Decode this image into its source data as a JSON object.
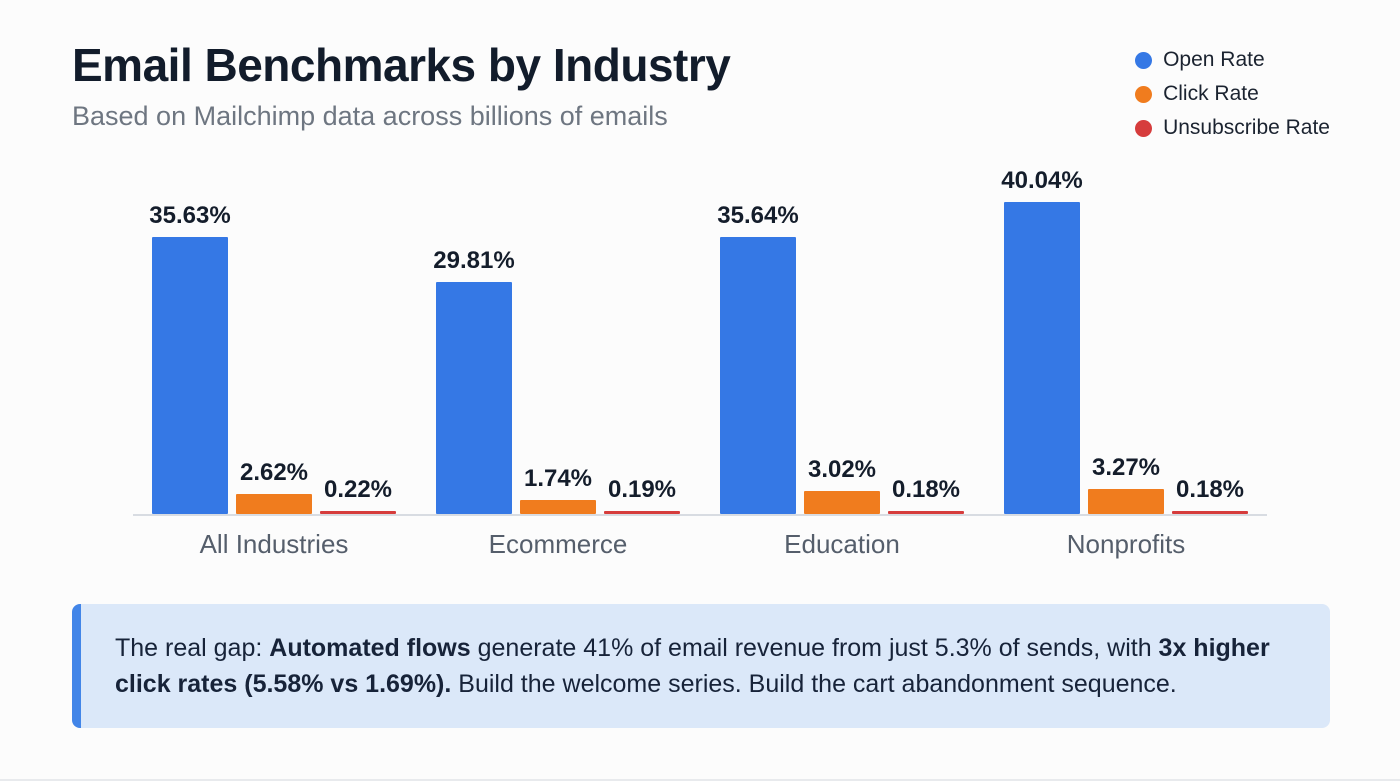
{
  "header": {
    "title": "Email Benchmarks by Industry",
    "subtitle": "Based on Mailchimp data across billions of emails"
  },
  "legend": [
    {
      "label": "Open Rate",
      "color": "#3578e5"
    },
    {
      "label": "Click Rate",
      "color": "#f07c1e"
    },
    {
      "label": "Unsubscribe Rate",
      "color": "#d63c3c"
    }
  ],
  "chart_data": {
    "type": "bar",
    "title": "Email Benchmarks by Industry",
    "subtitle": "Based on Mailchimp data across billions of emails",
    "categories": [
      "All Industries",
      "Ecommerce",
      "Education",
      "Nonprofits"
    ],
    "series": [
      {
        "name": "Open Rate",
        "color": "#3578e5",
        "values": [
          35.63,
          29.81,
          35.64,
          40.04
        ]
      },
      {
        "name": "Click Rate",
        "color": "#f07c1e",
        "values": [
          2.62,
          1.74,
          3.02,
          3.27
        ]
      },
      {
        "name": "Unsubscribe Rate",
        "color": "#d63c3c",
        "values": [
          0.22,
          0.19,
          0.18,
          0.18
        ]
      }
    ],
    "value_label_format": "percent_2dp",
    "xlabel": "",
    "ylabel": "",
    "ylim": [
      0,
      44
    ],
    "grid": false,
    "legend_position": "top-right",
    "data_labels": true
  },
  "callout": {
    "segments": [
      {
        "text": "The real gap: ",
        "bold": false
      },
      {
        "text": "Automated flows",
        "bold": true
      },
      {
        "text": " generate 41% of email revenue from just 5.3% of sends, with ",
        "bold": false
      },
      {
        "text": "3x higher click rates (5.58% vs 1.69%).",
        "bold": true
      },
      {
        "text": " Build the welcome series. Build the cart abandonment sequence.",
        "bold": false
      }
    ]
  }
}
